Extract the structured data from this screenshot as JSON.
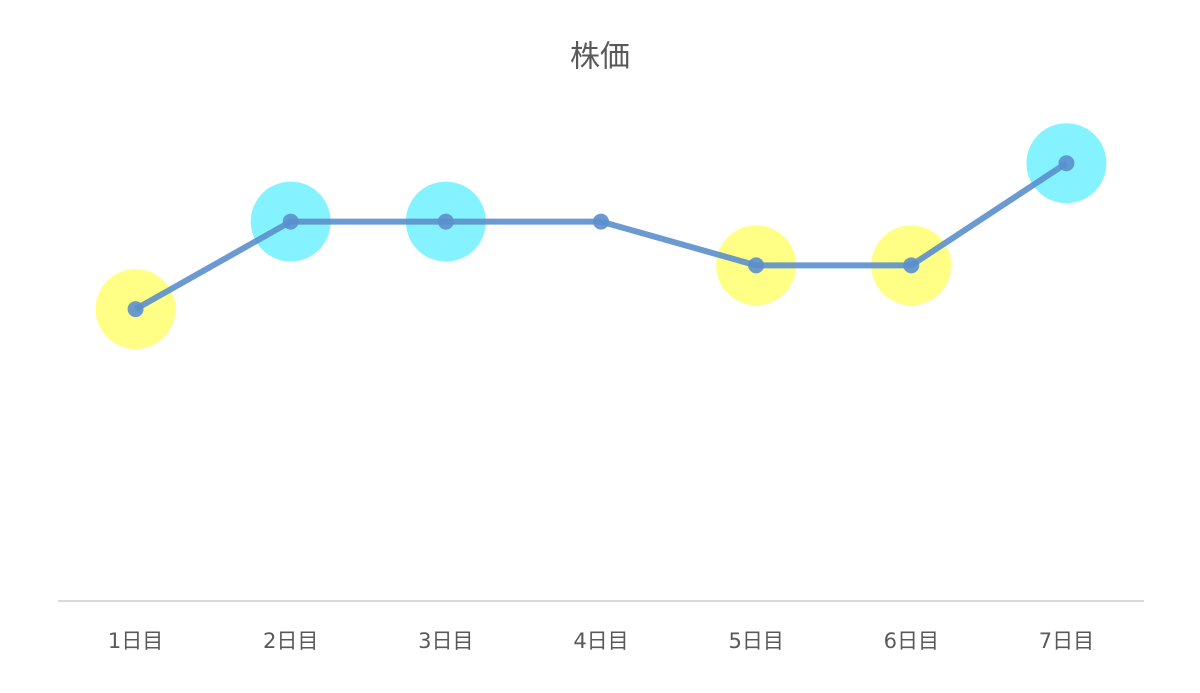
{
  "chart_data": {
    "type": "line",
    "title": "株価",
    "categories": [
      "1日目",
      "2日目",
      "3日目",
      "4日目",
      "5日目",
      "6日目",
      "7日目"
    ],
    "series": [
      {
        "name": "株価",
        "color": "#5b8fcd",
        "values": [
          100,
          130,
          130,
          130,
          115,
          115,
          150
        ]
      }
    ],
    "highlights": [
      "#ffff66",
      "#66f0ff",
      "#66f0ff",
      null,
      "#ffff66",
      "#ffff66",
      "#66f0ff"
    ],
    "ylim": [
      0,
      160
    ]
  }
}
